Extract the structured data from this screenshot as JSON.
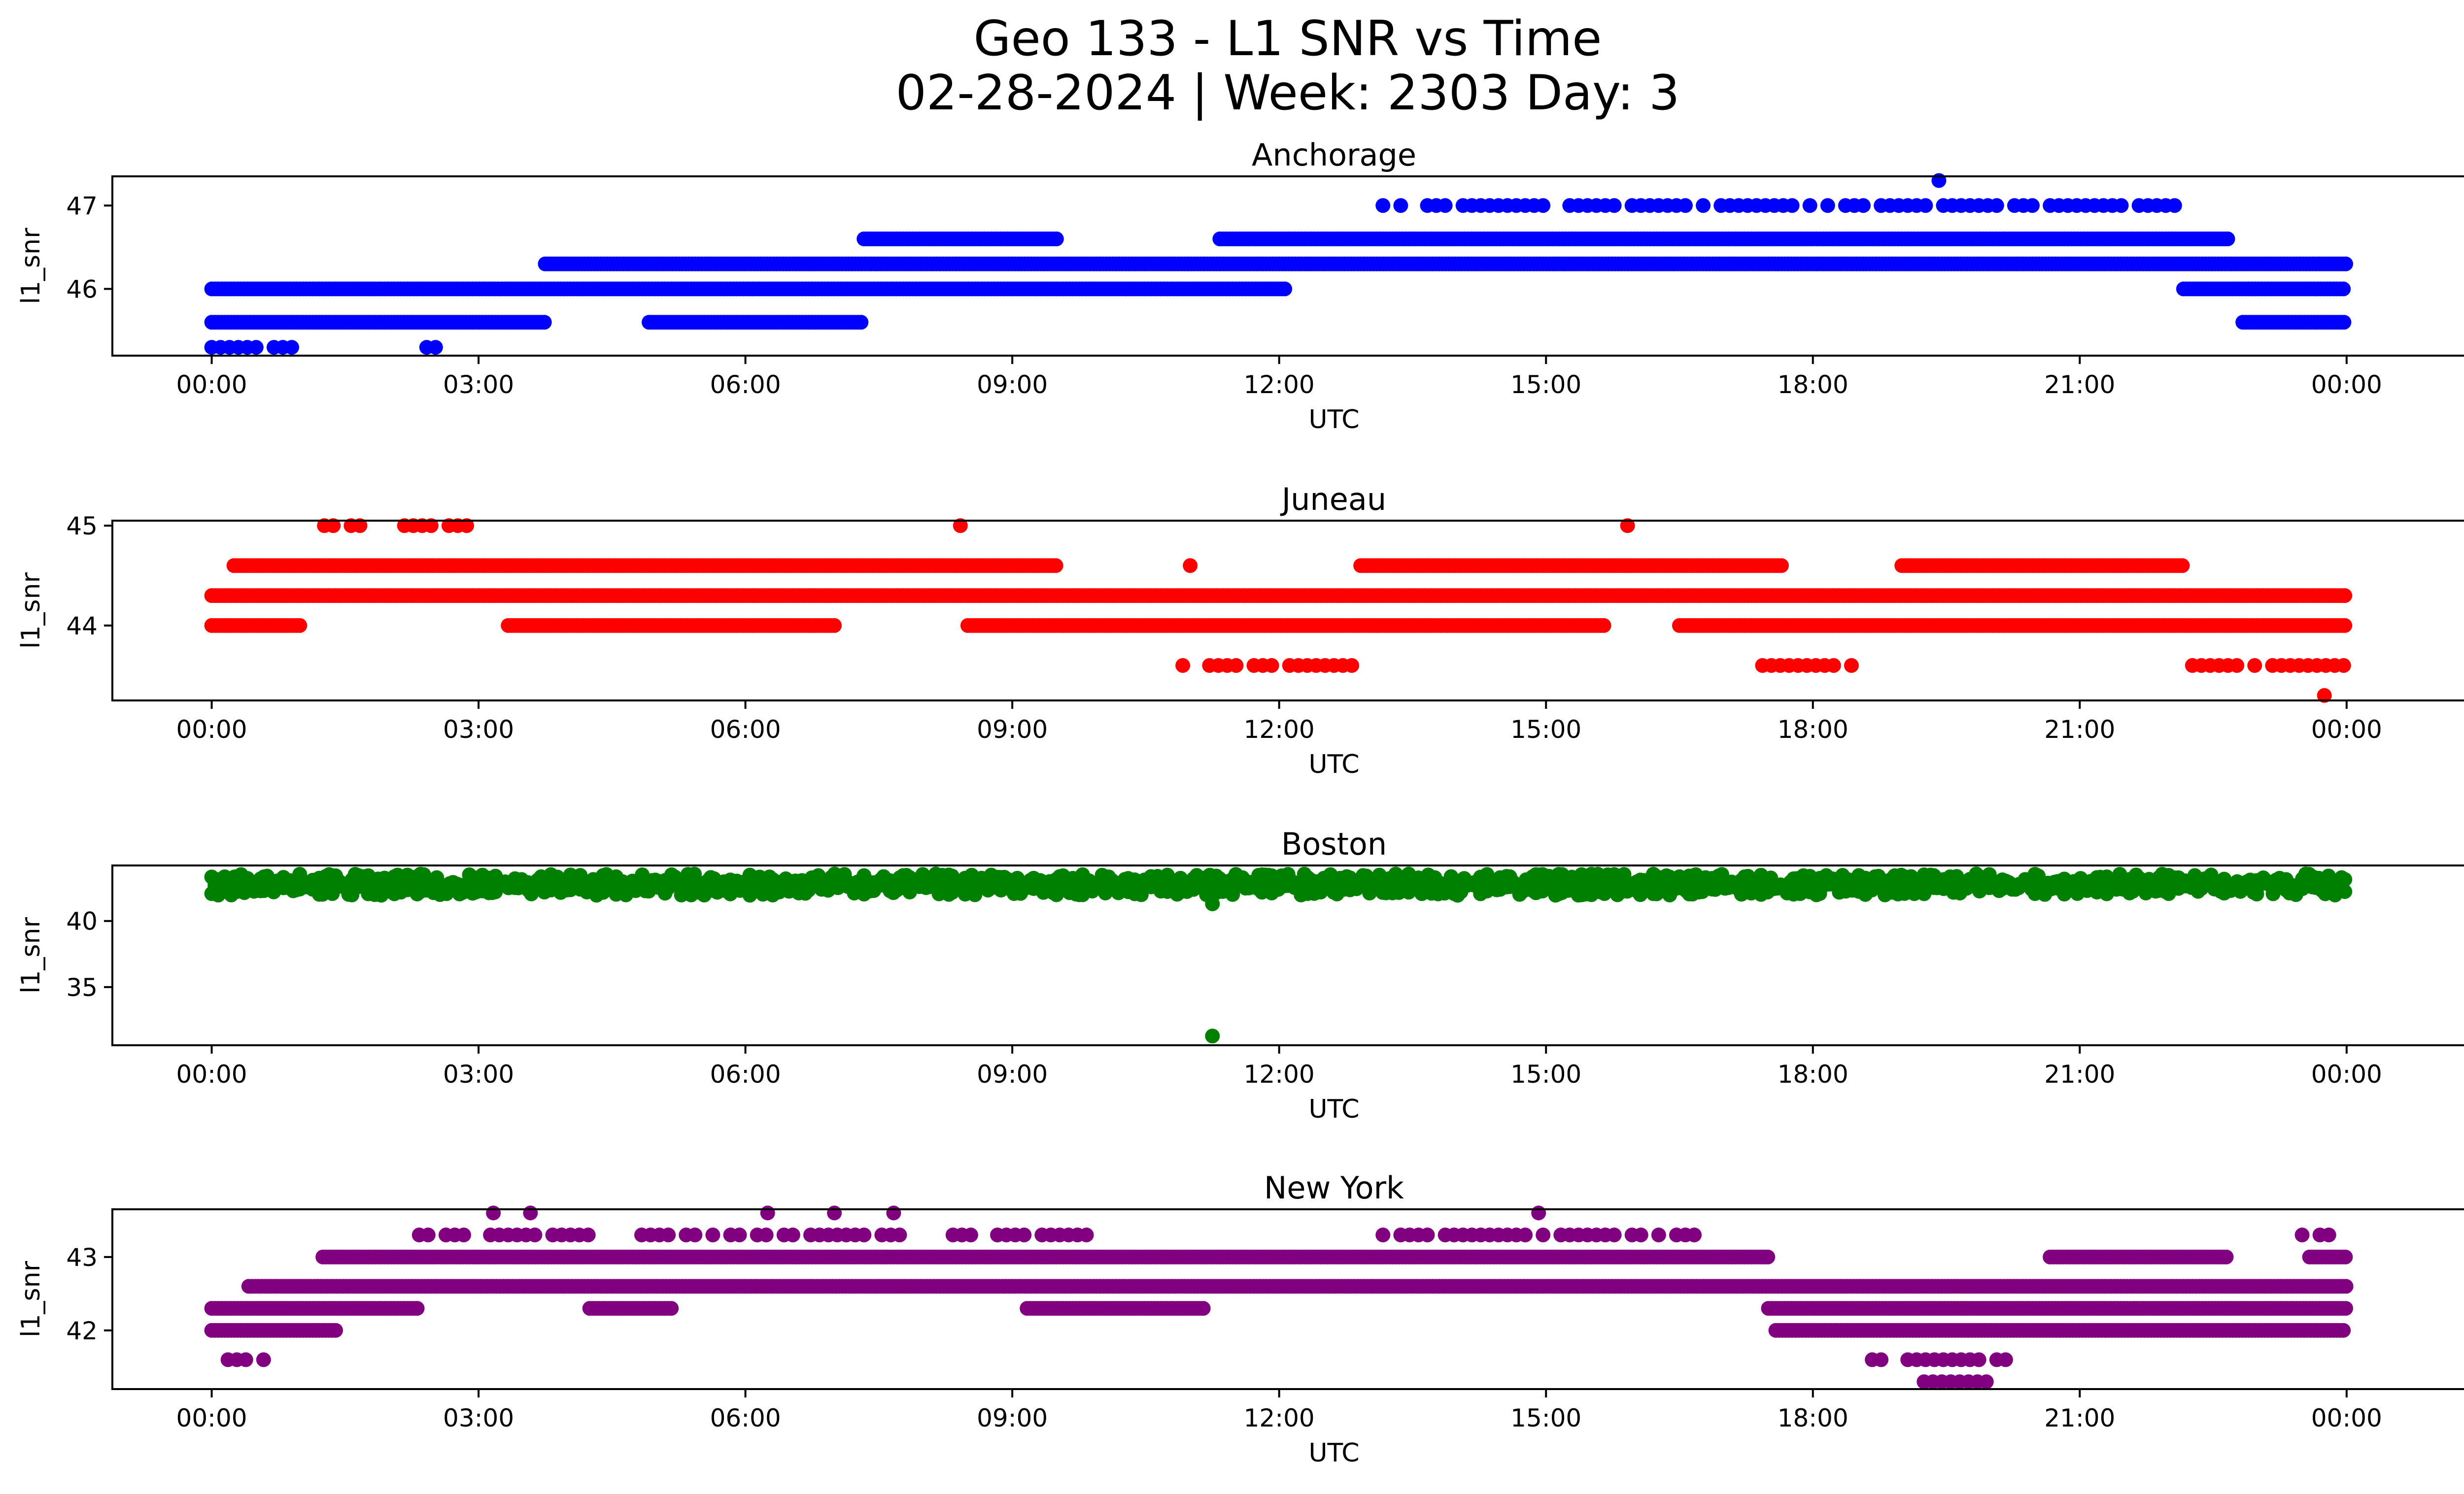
{
  "figure": {
    "title_line1": "Geo 133 - L1 SNR vs Time",
    "title_line2": "02-28-2024 | Week: 2303 Day: 3"
  },
  "chart_data": [
    {
      "type": "scatter",
      "title": "Anchorage",
      "xlabel": "UTC",
      "ylabel": "l1_snr",
      "color": "#0000ff",
      "xticks": [
        "00:00",
        "03:00",
        "06:00",
        "09:00",
        "12:00",
        "15:00",
        "18:00",
        "21:00",
        "00:00"
      ],
      "xlim": [
        "-01:07",
        "26:21"
      ],
      "yticks": [
        46,
        47
      ],
      "ylim": [
        45.2,
        47.35
      ],
      "bands": [
        {
          "y": 45.3,
          "ranges": [
            [
              "00:00",
              "00:55"
            ],
            [
              "02:25",
              "02:35"
            ]
          ],
          "sparse": true
        },
        {
          "y": 45.6,
          "ranges": [
            [
              "00:00",
              "03:45"
            ],
            [
              "04:55",
              "07:20"
            ],
            [
              "22:50",
              "24:00"
            ]
          ],
          "sparse": false
        },
        {
          "y": 46.0,
          "ranges": [
            [
              "00:00",
              "12:05"
            ],
            [
              "22:10",
              "24:00"
            ]
          ],
          "sparse": false
        },
        {
          "y": 46.3,
          "ranges": [
            [
              "03:45",
              "24:00"
            ]
          ],
          "sparse": false
        },
        {
          "y": 46.6,
          "ranges": [
            [
              "07:20",
              "09:30"
            ],
            [
              "11:20",
              "22:40"
            ]
          ],
          "sparse": false
        },
        {
          "y": 47.0,
          "ranges": [
            [
              "13:10",
              "22:10"
            ]
          ],
          "sparse": true
        },
        {
          "y": 47.3,
          "ranges": [
            [
              "19:25",
              "19:25"
            ]
          ],
          "sparse": true
        }
      ]
    },
    {
      "type": "scatter",
      "title": "Juneau",
      "xlabel": "UTC",
      "ylabel": "l1_snr",
      "color": "#ff0000",
      "xticks": [
        "00:00",
        "03:00",
        "06:00",
        "09:00",
        "12:00",
        "15:00",
        "18:00",
        "21:00",
        "00:00"
      ],
      "xlim": [
        "-01:07",
        "26:21"
      ],
      "yticks": [
        44,
        45
      ],
      "ylim": [
        43.25,
        45.05
      ],
      "bands": [
        {
          "y": 43.3,
          "ranges": [
            [
              "23:45",
              "23:45"
            ]
          ],
          "sparse": true
        },
        {
          "y": 43.6,
          "ranges": [
            [
              "10:55",
              "12:50"
            ],
            [
              "17:20",
              "18:30"
            ],
            [
              "22:10",
              "24:00"
            ]
          ],
          "sparse": true
        },
        {
          "y": 44.0,
          "ranges": [
            [
              "00:00",
              "01:00"
            ],
            [
              "03:20",
              "07:00"
            ],
            [
              "08:30",
              "15:40"
            ],
            [
              "16:30",
              "24:00"
            ]
          ],
          "sparse": false
        },
        {
          "y": 44.3,
          "ranges": [
            [
              "00:00",
              "24:00"
            ]
          ],
          "sparse": false
        },
        {
          "y": 44.6,
          "ranges": [
            [
              "00:15",
              "09:30"
            ],
            [
              "11:00",
              "11:00"
            ],
            [
              "12:55",
              "17:40"
            ],
            [
              "19:00",
              "22:10"
            ]
          ],
          "sparse": false
        },
        {
          "y": 45.0,
          "ranges": [
            [
              "01:10",
              "03:00"
            ],
            [
              "08:25",
              "08:25"
            ],
            [
              "15:55",
              "15:55"
            ]
          ],
          "sparse": true
        }
      ]
    },
    {
      "type": "scatter",
      "title": "Boston",
      "xlabel": "UTC",
      "ylabel": "l1_snr",
      "color": "#008000",
      "xticks": [
        "00:00",
        "03:00",
        "06:00",
        "09:00",
        "12:00",
        "15:00",
        "18:00",
        "21:00",
        "00:00"
      ],
      "xlim": [
        "-01:07",
        "26:21"
      ],
      "yticks": [
        35,
        40
      ],
      "ylim": [
        30.6,
        44.2
      ],
      "bands": [
        {
          "y": 42.5,
          "ranges": [
            [
              "00:00",
              "24:00"
            ]
          ],
          "sparse": false
        },
        {
          "y": 43.0,
          "ranges": [
            [
              "00:00",
              "24:00"
            ]
          ],
          "sparse": false
        },
        {
          "y": 41.3,
          "ranges": [
            [
              "11:15",
              "11:15"
            ]
          ],
          "sparse": true
        },
        {
          "y": 31.3,
          "ranges": [
            [
              "11:15",
              "11:15"
            ]
          ],
          "sparse": true
        }
      ]
    },
    {
      "type": "scatter",
      "title": "New York",
      "xlabel": "UTC",
      "ylabel": "l1_snr",
      "color": "#800080",
      "xticks": [
        "00:00",
        "03:00",
        "06:00",
        "09:00",
        "12:00",
        "15:00",
        "18:00",
        "21:00",
        "00:00"
      ],
      "xlim": [
        "-01:07",
        "26:21"
      ],
      "yticks": [
        42,
        43
      ],
      "ylim": [
        41.2,
        43.65
      ],
      "bands": [
        {
          "y": 41.3,
          "ranges": [
            [
              "19:15",
              "20:00"
            ]
          ],
          "sparse": true
        },
        {
          "y": 41.6,
          "ranges": [
            [
              "00:05",
              "00:40"
            ],
            [
              "18:40",
              "20:30"
            ]
          ],
          "sparse": true
        },
        {
          "y": 42.0,
          "ranges": [
            [
              "00:00",
              "01:25"
            ],
            [
              "17:35",
              "24:00"
            ]
          ],
          "sparse": false
        },
        {
          "y": 42.3,
          "ranges": [
            [
              "00:00",
              "02:20"
            ],
            [
              "04:15",
              "05:10"
            ],
            [
              "09:10",
              "11:10"
            ],
            [
              "17:30",
              "24:00"
            ]
          ],
          "sparse": false
        },
        {
          "y": 42.6,
          "ranges": [
            [
              "00:25",
              "24:00"
            ]
          ],
          "sparse": false
        },
        {
          "y": 43.0,
          "ranges": [
            [
              "01:15",
              "17:30"
            ],
            [
              "20:40",
              "22:40"
            ],
            [
              "23:35",
              "24:00"
            ]
          ],
          "sparse": false
        },
        {
          "y": 43.3,
          "ranges": [
            [
              "02:20",
              "09:50"
            ],
            [
              "13:10",
              "16:45"
            ],
            [
              "23:30",
              "23:50"
            ]
          ],
          "sparse": true
        },
        {
          "y": 43.6,
          "ranges": [
            [
              "03:10",
              "03:10"
            ],
            [
              "03:35",
              "03:35"
            ],
            [
              "06:15",
              "06:15"
            ],
            [
              "07:00",
              "07:00"
            ],
            [
              "07:40",
              "07:40"
            ],
            [
              "14:55",
              "14:55"
            ]
          ],
          "sparse": true
        }
      ]
    }
  ]
}
